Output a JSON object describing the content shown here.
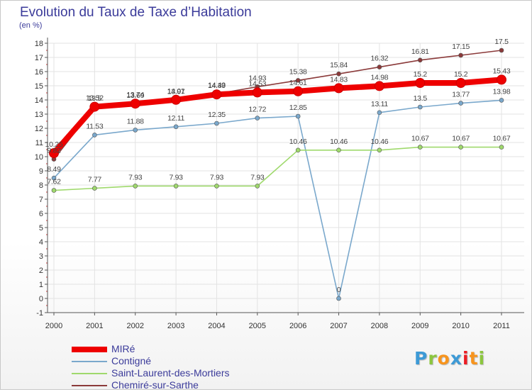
{
  "title": "Evolution du Taux de Taxe d’Habitation",
  "unit": "(en %)",
  "logo": {
    "letters": [
      "P",
      "r",
      "o",
      "x",
      "i",
      "t",
      "i"
    ],
    "colors": [
      "#3d9ad6",
      "#8cc63f",
      "#f7941d",
      "#3d9ad6",
      "#ec1c24",
      "#f7941d",
      "#8cc63f"
    ]
  },
  "chart_data": {
    "type": "line",
    "x": [
      "2000",
      "2001",
      "2002",
      "2003",
      "2004",
      "2005",
      "2006",
      "2007",
      "2008",
      "2009",
      "2010",
      "2011"
    ],
    "ylim": [
      -1,
      18
    ],
    "yticks": [
      -1,
      0,
      1,
      2,
      3,
      4,
      5,
      6,
      7,
      8,
      9,
      10,
      11,
      12,
      13,
      14,
      15,
      16,
      17,
      18
    ],
    "grid": true,
    "legend_position": "bottom-left",
    "series": [
      {
        "name": "MIRé",
        "color": "#ee0000",
        "values": [
          10.25,
          13.52,
          13.74,
          14.01,
          14.39,
          14.53,
          14.61,
          14.83,
          14.98,
          15.2,
          15.2,
          15.43
        ],
        "labels": [
          "10.25",
          "13.52",
          "13.74",
          "14.01",
          "14.39",
          "14.53",
          "14.61",
          "14.83",
          "14.98",
          "15.2",
          "15.2",
          "15.43"
        ]
      },
      {
        "name": "Contigné",
        "color": "#7aa8cc",
        "values": [
          8.49,
          11.53,
          11.88,
          12.11,
          12.35,
          12.72,
          12.85,
          0,
          13.11,
          13.5,
          13.77,
          13.98
        ],
        "labels": [
          "8.49",
          "11.53",
          "11.88",
          "12.11",
          "12.35",
          "12.72",
          "12.85",
          "0",
          "13.11",
          "13.5",
          "13.77",
          "13.98"
        ]
      },
      {
        "name": "Saint-Laurent-des-Mortiers",
        "color": "#9fd96c",
        "values": [
          7.62,
          7.77,
          7.93,
          7.93,
          7.93,
          7.93,
          10.46,
          10.46,
          10.46,
          10.67,
          10.67,
          10.67
        ],
        "labels": [
          "7.62",
          "7.77",
          "7.93",
          "7.93",
          "7.93",
          "7.93",
          "10.46",
          "10.46",
          "10.46",
          "10.67",
          "10.67",
          "10.67"
        ]
      },
      {
        "name": "Chemiré-sur-Sarthe",
        "color": "#8b3a3a",
        "values": [
          9.82,
          13.5,
          13.69,
          13.97,
          14.43,
          14.93,
          15.38,
          15.84,
          16.32,
          16.81,
          17.15,
          17.5
        ],
        "labels": [
          "9.82",
          "13.5",
          "13.69",
          "13.97",
          "14.43",
          "14.93",
          "15.38",
          "15.84",
          "16.32",
          "16.81",
          "17.15",
          "17.5"
        ]
      }
    ]
  }
}
